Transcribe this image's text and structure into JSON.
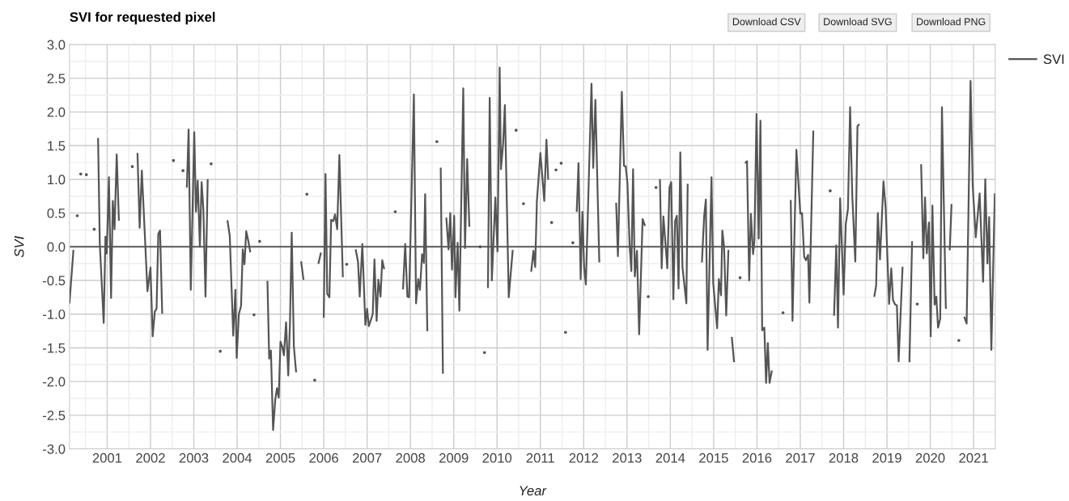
{
  "chart_data": {
    "type": "line",
    "title": "SVI for requested pixel",
    "xlabel": "Year",
    "ylabel": "SVI",
    "annotations": [
      "Download CSV",
      "Download SVG",
      "Download PNG"
    ],
    "xlim": [
      2000.13,
      2021.5
    ],
    "xticks": [
      {
        "value": 2000.5,
        "label": null
      },
      2001,
      {
        "value": 2001.5,
        "label": null
      },
      2002,
      {
        "value": 2002.5,
        "label": null
      },
      2003,
      {
        "value": 2003.5,
        "label": null
      },
      2004,
      {
        "value": 2004.5,
        "label": null
      },
      2005,
      {
        "value": 2005.5,
        "label": null
      },
      2006,
      {
        "value": 2006.5,
        "label": null
      },
      2007,
      {
        "value": 2007.5,
        "label": null
      },
      2008,
      {
        "value": 2008.5,
        "label": null
      },
      2009,
      {
        "value": 2009.5,
        "label": null
      },
      2010,
      {
        "value": 2010.5,
        "label": null
      },
      2011,
      {
        "value": 2011.5,
        "label": null
      },
      2012,
      {
        "value": 2012.5,
        "label": null
      },
      2013,
      {
        "value": 2013.5,
        "label": null
      },
      2014,
      {
        "value": 2014.5,
        "label": null
      },
      2015,
      {
        "value": 2015.5,
        "label": null
      },
      2016,
      {
        "value": 2016.5,
        "label": null
      },
      2017,
      {
        "value": 2017.5,
        "label": null
      },
      2018,
      {
        "value": 2018.5,
        "label": null
      },
      2019,
      {
        "value": 2019.5,
        "label": null
      },
      2020,
      {
        "value": 2020.5,
        "label": null
      },
      2021
    ],
    "ylim": [
      -3,
      3
    ],
    "yticks": [
      {
        "value": -3,
        "label": "-3.0"
      },
      {
        "value": -2.75,
        "label": null
      },
      {
        "value": -2.5,
        "label": "-2.5"
      },
      {
        "value": -2.25,
        "label": null
      },
      {
        "value": -2,
        "label": "-2.0"
      },
      {
        "value": -1.75,
        "label": null
      },
      {
        "value": -1.5,
        "label": "-1.5"
      },
      {
        "value": -1.25,
        "label": null
      },
      {
        "value": -1,
        "label": "-1.0"
      },
      {
        "value": -0.75,
        "label": null
      },
      {
        "value": -0.5,
        "label": "-0.5"
      },
      {
        "value": -0.25,
        "label": null
      },
      {
        "value": 0,
        "label": "0.0"
      },
      {
        "value": 0.25,
        "label": null
      },
      {
        "value": 0.5,
        "label": "0.5"
      },
      {
        "value": 0.75,
        "label": null
      },
      {
        "value": 1,
        "label": "1.0"
      },
      {
        "value": 1.25,
        "label": null
      },
      {
        "value": 1.5,
        "label": "1.5"
      },
      {
        "value": 1.75,
        "label": null
      },
      {
        "value": 2,
        "label": "2.0"
      },
      {
        "value": 2.25,
        "label": null
      },
      {
        "value": 2.5,
        "label": "2.5"
      },
      {
        "value": 2.75,
        "label": null
      },
      {
        "value": 3,
        "label": "3.0"
      }
    ],
    "grid": true,
    "legend": "top right",
    "ref_lines": [
      {
        "axis": "y",
        "value": 0,
        "label": null,
        "color": "#444444"
      }
    ],
    "series": [
      {
        "name": "SVI",
        "color": "#555555",
        "x": [
          2000.13,
          2000.22,
          2000.25,
          2000.31,
          2000.35,
          2000.39,
          2000.45,
          2000.52,
          2000.6,
          2000.7,
          2000.75,
          2000.79,
          2000.83,
          2000.92,
          2000.96,
          2000.99,
          2001.04,
          2001.09,
          2001.13,
          2001.17,
          2001.22,
          2001.27,
          2001.4,
          2001.58,
          2001.65,
          2001.7,
          2001.75,
          2001.8,
          2001.93,
          2002.0,
          2002.05,
          2002.1,
          2002.14,
          2002.18,
          2002.22,
          2002.27,
          2002.4,
          2002.53,
          2002.65,
          2002.75,
          2002.8,
          2002.84,
          2002.88,
          2002.93,
          2003.01,
          2003.05,
          2003.09,
          2003.14,
          2003.18,
          2003.22,
          2003.27,
          2003.32,
          2003.36,
          2003.4,
          2003.5,
          2003.61,
          2003.7,
          2003.78,
          2003.83,
          2003.91,
          2003.96,
          2003.99,
          2004.04,
          2004.09,
          2004.13,
          2004.17,
          2004.21,
          2004.26,
          2004.3,
          2004.35,
          2004.39,
          2004.45,
          2004.52,
          2004.6,
          2004.7,
          2004.74,
          2004.78,
          2004.83,
          2004.88,
          2004.92,
          2004.96,
          2005.0,
          2005.04,
          2005.08,
          2005.13,
          2005.18,
          2005.22,
          2005.26,
          2005.31,
          2005.36,
          2005.42,
          2005.48,
          2005.53,
          2005.57,
          2005.61,
          2005.7,
          2005.79,
          2005.84,
          2005.88,
          2005.93,
          2005.96,
          2006.0,
          2006.04,
          2006.08,
          2006.13,
          2006.17,
          2006.22,
          2006.26,
          2006.31,
          2006.36,
          2006.44,
          2006.48,
          2006.53,
          2006.6,
          2006.74,
          2006.79,
          2006.83,
          2006.89,
          2006.96,
          2007.0,
          2007.04,
          2007.13,
          2007.17,
          2007.22,
          2007.26,
          2007.31,
          2007.35,
          2007.39,
          2007.5,
          2007.65,
          2007.75,
          2007.83,
          2007.88,
          2007.93,
          2007.97,
          2008.08,
          2008.13,
          2008.18,
          2008.22,
          2008.27,
          2008.31,
          2008.34,
          2008.39,
          2008.5,
          2008.61,
          2008.65,
          2008.7,
          2008.75,
          2008.79,
          2008.83,
          2008.88,
          2008.92,
          2008.96,
          2009.01,
          2009.04,
          2009.09,
          2009.13,
          2009.22,
          2009.26,
          2009.31,
          2009.36,
          2009.5,
          2009.61,
          2009.65,
          2009.71,
          2009.75,
          2009.79,
          2009.83,
          2009.88,
          2009.96,
          2010.01,
          2010.06,
          2010.09,
          2010.14,
          2010.18,
          2010.27,
          2010.36,
          2010.4,
          2010.44,
          2010.5,
          2010.61,
          2010.7,
          2010.79,
          2010.84,
          2010.88,
          2010.92,
          2011.0,
          2011.09,
          2011.14,
          2011.18,
          2011.22,
          2011.26,
          2011.3,
          2011.36,
          2011.42,
          2011.48,
          2011.53,
          2011.58,
          2011.65,
          2011.75,
          2011.8,
          2011.84,
          2011.88,
          2011.93,
          2011.97,
          2012.01,
          2012.05,
          2012.18,
          2012.22,
          2012.27,
          2012.36,
          2012.5,
          2012.75,
          2012.79,
          2012.88,
          2012.93,
          2012.97,
          2013.01,
          2013.06,
          2013.1,
          2013.14,
          2013.18,
          2013.23,
          2013.28,
          2013.36,
          2013.41,
          2013.45,
          2013.49,
          2013.55,
          2013.67,
          2013.7,
          2013.76,
          2013.8,
          2013.84,
          2013.93,
          2013.98,
          2014.02,
          2014.07,
          2014.11,
          2014.15,
          2014.19,
          2014.23,
          2014.28,
          2014.37,
          2014.4,
          2014.5,
          2014.73,
          2014.78,
          2014.82,
          2014.86,
          2014.95,
          2014.99,
          2015.08,
          2015.12,
          2015.17,
          2015.2,
          2015.24,
          2015.29,
          2015.34,
          2015.38,
          2015.42,
          2015.47,
          2015.5,
          2015.61,
          2015.65,
          2015.74,
          2015.77,
          2015.82,
          2015.86,
          2015.91,
          2015.94,
          2015.99,
          2016.04,
          2016.08,
          2016.12,
          2016.17,
          2016.21,
          2016.25,
          2016.29,
          2016.34,
          2016.45,
          2016.6,
          2016.7,
          2016.78,
          2016.82,
          2016.91,
          2017.0,
          2017.04,
          2017.09,
          2017.13,
          2017.18,
          2017.21,
          2017.3,
          2017.5,
          2017.69,
          2017.72,
          2017.78,
          2017.83,
          2017.87,
          2017.92,
          2018.0,
          2018.05,
          2018.1,
          2018.15,
          2018.2,
          2018.27,
          2018.32,
          2018.35,
          2018.5,
          2018.71,
          2018.75,
          2018.79,
          2018.84,
          2018.92,
          2018.97,
          2019.05,
          2019.1,
          2019.14,
          2019.19,
          2019.23,
          2019.27,
          2019.36,
          2019.45,
          2019.52,
          2019.58,
          2019.64,
          2019.7,
          2019.75,
          2019.79,
          2019.84,
          2019.88,
          2019.92,
          2019.97,
          2020.01,
          2020.05,
          2020.1,
          2020.14,
          2020.18,
          2020.23,
          2020.27,
          2020.36,
          2020.4,
          2020.45,
          2020.49,
          2020.55,
          2020.66,
          2020.72,
          2020.79,
          2020.84,
          2020.93,
          2020.98,
          2021.05,
          2021.14,
          2021.22,
          2021.27,
          2021.32,
          2021.36,
          2021.41,
          2021.49
        ],
        "values": [
          -0.83,
          -0.06,
          null,
          0.46,
          null,
          1.08,
          null,
          1.07,
          null,
          0.26,
          null,
          1.6,
          0.04,
          -1.13,
          0.15,
          -0.1,
          1.03,
          -0.76,
          0.68,
          0.26,
          1.37,
          0.4,
          null,
          1.19,
          null,
          1.38,
          0.28,
          1.13,
          -0.66,
          -0.31,
          -1.33,
          -0.96,
          -0.92,
          0.19,
          0.24,
          -0.98,
          null,
          1.28,
          null,
          1.13,
          null,
          0.89,
          1.74,
          -0.64,
          1.7,
          0.52,
          0.98,
          0.0,
          0.96,
          0.56,
          -0.74,
          0.99,
          null,
          1.23,
          null,
          -1.55,
          null,
          0.38,
          0.16,
          -1.32,
          -0.64,
          -1.65,
          -1.0,
          -0.88,
          -0.04,
          -0.26,
          0.23,
          0.08,
          -0.07,
          null,
          -1.01,
          null,
          0.08,
          null,
          -0.52,
          -1.66,
          -1.54,
          -2.72,
          -2.27,
          -2.1,
          -2.24,
          -1.41,
          -1.48,
          -1.61,
          -1.12,
          -1.91,
          -1.12,
          0.21,
          -1.48,
          -1.85,
          null,
          -0.23,
          -0.48,
          null,
          0.78,
          null,
          -1.98,
          null,
          -0.24,
          -0.1,
          null,
          -1.04,
          1.08,
          -0.7,
          -0.75,
          0.4,
          0.38,
          0.48,
          0.26,
          1.36,
          -0.44,
          null,
          -0.26,
          null,
          -0.05,
          -0.22,
          -0.74,
          0.04,
          -1.16,
          -0.92,
          -1.18,
          -1.0,
          -0.19,
          -1.1,
          -0.49,
          -0.74,
          -0.2,
          -0.32,
          null,
          0.52,
          null,
          -0.62,
          0.04,
          -0.74,
          -0.75,
          2.26,
          -0.84,
          -0.48,
          -0.64,
          -0.11,
          -0.24,
          0.78,
          -1.24,
          null,
          1.56,
          null,
          1.16,
          -1.87,
          null,
          0.42,
          -0.04,
          0.5,
          -0.34,
          0.46,
          -0.75,
          0.06,
          -0.95,
          2.35,
          -0.02,
          1.3,
          0.31,
          null,
          0.0,
          null,
          -1.57,
          null,
          -0.6,
          2.21,
          -0.5,
          0.73,
          -0.07,
          2.66,
          1.15,
          1.53,
          2.1,
          -0.75,
          -0.06,
          null,
          1.73,
          null,
          0.64,
          null,
          -0.36,
          -0.06,
          -0.3,
          0.68,
          1.39,
          0.68,
          1.59,
          1.01,
          null,
          0.36,
          null,
          1.14,
          null,
          1.24,
          null,
          -1.27,
          null,
          0.06,
          null,
          0.53,
          1.24,
          -0.48,
          0.52,
          -0.31,
          -0.56,
          2.42,
          1.17,
          2.18,
          -0.22,
          null,
          0.64,
          -0.14,
          2.3,
          1.2,
          1.19,
          0.94,
          0.02,
          -0.36,
          1.15,
          -0.44,
          -0.06,
          -1.3,
          0.41,
          0.32,
          null,
          -0.74,
          null,
          0.88,
          null,
          0.99,
          -0.32,
          0.45,
          -0.32,
          0.88,
          0.96,
          -0.78,
          0.38,
          0.46,
          -0.62,
          1.4,
          -0.3,
          -0.84,
          0.92,
          null,
          -0.22,
          0.45,
          0.7,
          -1.53,
          1.03,
          -0.54,
          -1.21,
          -0.48,
          -0.72,
          0.24,
          0.0,
          -1.02,
          -0.06,
          null,
          -1.35,
          -1.7,
          null,
          -0.46,
          null,
          1.25,
          1.27,
          -0.5,
          0.49,
          -0.11,
          0.08,
          1.97,
          0.12,
          1.87,
          -1.24,
          -1.2,
          -2.02,
          -1.43,
          -2.02,
          -1.85,
          null,
          -0.98,
          null,
          0.68,
          -1.1,
          1.44,
          0.49,
          0.5,
          -0.15,
          -0.2,
          -0.12,
          -0.83,
          1.71,
          null,
          0.83,
          null,
          -1.01,
          0.02,
          -1.2,
          0.72,
          -0.71,
          0.34,
          0.56,
          2.07,
          0.75,
          -0.22,
          1.79,
          1.81,
          null,
          -0.73,
          -0.58,
          0.5,
          -0.19,
          0.97,
          0.58,
          -0.85,
          -0.32,
          -0.79,
          -0.86,
          -0.87,
          -1.7,
          -0.31,
          null,
          -1.7,
          0.07,
          null,
          -0.85,
          null,
          1.21,
          -0.17,
          0.73,
          -0.1,
          0.36,
          -1.33,
          0.61,
          -0.86,
          -0.74,
          -1.2,
          -1.07,
          2.07,
          -0.91,
          null,
          -0.04,
          0.62,
          null,
          -1.39,
          null,
          -1.05,
          -1.14,
          2.46,
          0.91,
          0.14,
          0.79,
          -0.52,
          1.0,
          -0.25,
          0.44,
          -1.53,
          0.78
        ]
      }
    ]
  }
}
